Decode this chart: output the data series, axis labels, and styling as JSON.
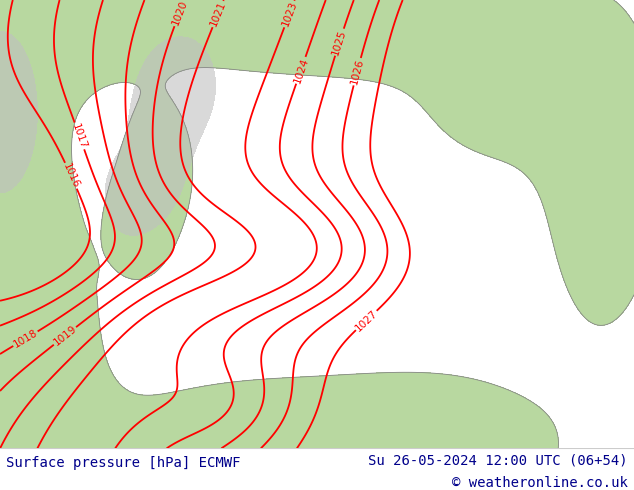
{
  "title_left": "Surface pressure [hPa] ECMWF",
  "title_right": "Su 26-05-2024 12:00 UTC (06+54)",
  "copyright": "© weatheronline.co.uk",
  "sea_color": "#d8d8d8",
  "land_color": "#b8d8a0",
  "gray_color": "#c0c0c0",
  "contour_color": "#ff0000",
  "coast_color": "#888888",
  "footer_bg": "#ffffff",
  "footer_text_color": "#00008b",
  "footer_fontsize": 10,
  "fig_width": 6.34,
  "fig_height": 4.9,
  "dpi": 100,
  "pressure_levels": [
    1016,
    1017,
    1018,
    1019,
    1020,
    1021,
    1023,
    1024,
    1025,
    1026,
    1027
  ],
  "contour_linewidth": 1.3
}
